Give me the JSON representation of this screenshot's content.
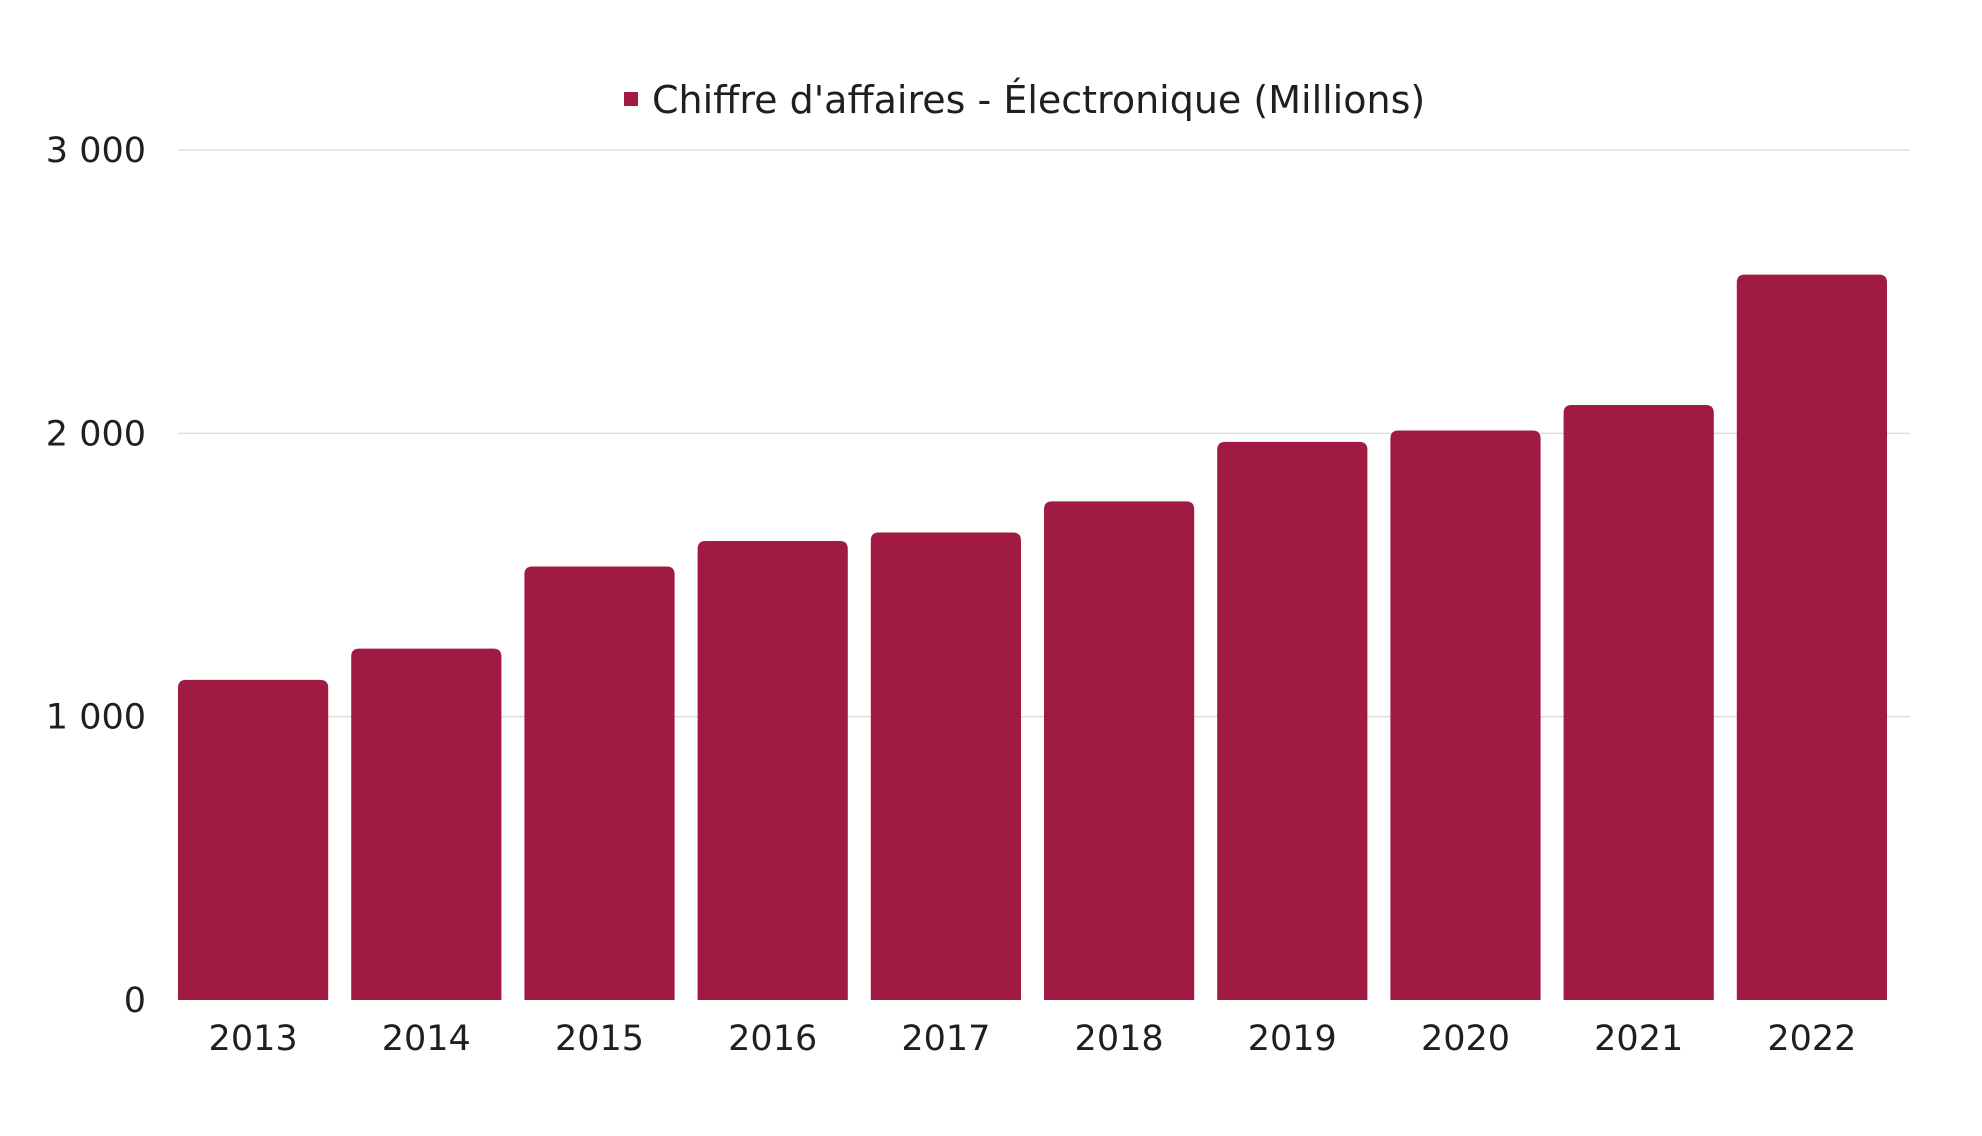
{
  "chart_data": {
    "type": "bar",
    "title": "",
    "xlabel": "",
    "ylabel": "",
    "categories": [
      "2013",
      "2014",
      "2015",
      "2016",
      "2017",
      "2018",
      "2019",
      "2020",
      "2021",
      "2022"
    ],
    "series": [
      {
        "name": "Chiffre d'affaires - Électronique (Millions)",
        "color": "#a01a41",
        "values": [
          1130,
          1240,
          1530,
          1620,
          1650,
          1760,
          1970,
          2010,
          2100,
          2560
        ]
      }
    ],
    "ylim": [
      0,
      3000
    ],
    "yticks": [
      0,
      1000,
      2000,
      3000
    ],
    "ytick_labels": [
      "0",
      "1 000",
      "2 000",
      "3 000"
    ],
    "grid": "horizontal",
    "gridline_color": "#dddddd",
    "legend_position": "top-center"
  }
}
